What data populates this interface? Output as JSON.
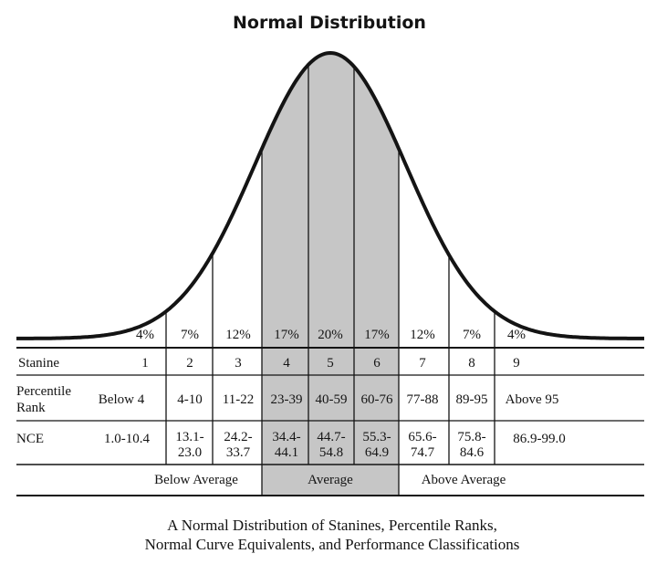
{
  "title": "Normal Distribution",
  "colors": {
    "ink": "#141414",
    "average_fill": "#c6c6c6",
    "background": "#ffffff"
  },
  "percentages": [
    "4%",
    "7%",
    "12%",
    "17%",
    "20%",
    "17%",
    "12%",
    "7%",
    "4%"
  ],
  "row_labels": {
    "stanine": "Stanine",
    "percentile_line1": "Percentile",
    "percentile_line2": "Rank",
    "nce": "NCE"
  },
  "stanines": [
    "1",
    "2",
    "3",
    "4",
    "5",
    "6",
    "7",
    "8",
    "9"
  ],
  "percentile_ranks": [
    "Below 4",
    "4-10",
    "11-22",
    "23-39",
    "40-59",
    "60-76",
    "77-88",
    "89-95",
    "Above 95"
  ],
  "nce": [
    [
      "1.0-10.4"
    ],
    [
      "13.1-",
      "23.0"
    ],
    [
      "24.2-",
      "33.7"
    ],
    [
      "34.4-",
      "44.1"
    ],
    [
      "44.7-",
      "54.8"
    ],
    [
      "55.3-",
      "64.9"
    ],
    [
      "65.6-",
      "74.7"
    ],
    [
      "75.8-",
      "84.6"
    ],
    [
      "86.9-99.0"
    ]
  ],
  "classifications": [
    "Below Average",
    "Average",
    "Above Average"
  ],
  "caption": [
    "A Normal Distribution of Stanines, Percentile Ranks,",
    "Normal Curve Equivalents, and Performance Classifications"
  ]
}
